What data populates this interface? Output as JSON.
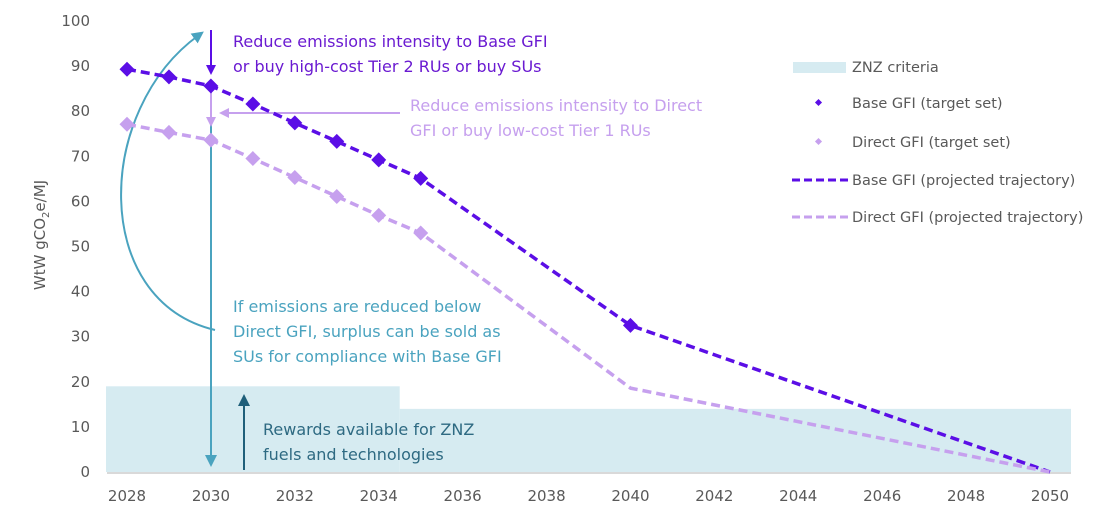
{
  "chart_data": {
    "type": "line",
    "title": "",
    "xlabel": "",
    "ylabel": "WtW gCO2e/MJ",
    "ylabel_parts": {
      "prefix": "WtW gCO",
      "sub": "2",
      "suffix": "e/MJ"
    },
    "xlim": [
      2027.5,
      2050.5
    ],
    "ylim": [
      0,
      100
    ],
    "yticks": [
      0,
      10,
      20,
      30,
      40,
      50,
      60,
      70,
      80,
      90,
      100
    ],
    "xticks": [
      2028,
      2030,
      2032,
      2034,
      2036,
      2038,
      2040,
      2042,
      2044,
      2046,
      2048,
      2050
    ],
    "grid": false,
    "legend_position": "top-right",
    "colors": {
      "base": "#5b0ee6",
      "direct": "#c6a0ee",
      "znz": "#d6ebf1",
      "teal": "#4aa3bf",
      "dark_teal": "#1f5f7a",
      "annotation_base": "#6a1ad1",
      "annotation_direct": "#c6a0ee",
      "annotation_teal": "#4aa3bf",
      "annotation_rewards": "#2e6a82"
    },
    "series": [
      {
        "name": "Base GFI (target set)",
        "kind": "markers",
        "x": [
          2028,
          2029,
          2030,
          2031,
          2032,
          2033,
          2034,
          2035,
          2040
        ],
        "y": [
          89.3,
          87.6,
          85.6,
          81.6,
          77.4,
          73.3,
          69.2,
          65.1,
          32.5
        ]
      },
      {
        "name": "Direct GFI (target set)",
        "kind": "markers",
        "x": [
          2028,
          2029,
          2030,
          2031,
          2032,
          2033,
          2034,
          2035
        ],
        "y": [
          77.1,
          75.3,
          73.6,
          69.5,
          65.3,
          61.1,
          56.9,
          53.0
        ]
      },
      {
        "name": "Base GFI (projected trajectory)",
        "kind": "dashed-line",
        "x": [
          2028,
          2029,
          2030,
          2031,
          2032,
          2033,
          2034,
          2035,
          2040,
          2050
        ],
        "y": [
          89.3,
          87.6,
          85.6,
          81.6,
          77.4,
          73.3,
          69.2,
          65.1,
          32.5,
          0
        ]
      },
      {
        "name": "Direct GFI (projected trajectory)",
        "kind": "dashed-line",
        "x": [
          2028,
          2029,
          2030,
          2031,
          2032,
          2033,
          2034,
          2035,
          2040,
          2050
        ],
        "y": [
          77.1,
          75.3,
          73.6,
          69.5,
          65.3,
          61.1,
          56.9,
          53.0,
          18.6,
          0
        ]
      },
      {
        "name": "ZNZ criteria",
        "kind": "area-step",
        "segments": [
          {
            "x0": 2027.5,
            "x1": 2034.5,
            "y": 19
          },
          {
            "x0": 2034.5,
            "x1": 2050.5,
            "y": 14
          }
        ]
      }
    ],
    "legend": [
      {
        "label": "ZNZ criteria",
        "kind": "patch"
      },
      {
        "label": "Base GFI (target set)",
        "kind": "marker-base"
      },
      {
        "label": "Direct GFI (target set)",
        "kind": "marker-direct"
      },
      {
        "label": "Base GFI (projected trajectory)",
        "kind": "dash-base"
      },
      {
        "label": "Direct GFI (projected trajectory)",
        "kind": "dash-direct"
      }
    ],
    "annotations": [
      {
        "id": "base",
        "lines": [
          "Reduce emissions intensity to Base GFI",
          "or buy high-cost Tier 2 RUs or buy SUs"
        ]
      },
      {
        "id": "direct",
        "lines": [
          "Reduce emissions intensity to Direct",
          "GFI or buy low-cost Tier 1 RUs"
        ]
      },
      {
        "id": "surplus",
        "lines": [
          "If emissions are reduced below",
          "Direct GFI, surplus can be sold as",
          "SUs for compliance with Base GFI"
        ]
      },
      {
        "id": "rewards",
        "lines": [
          "Rewards available for ZNZ",
          "fuels and technologies"
        ]
      }
    ]
  }
}
